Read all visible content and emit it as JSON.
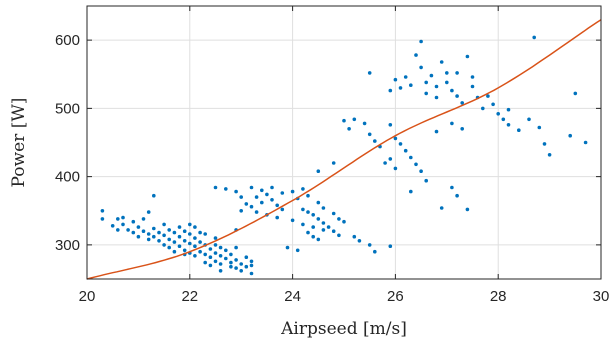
{
  "chart_data": {
    "type": "scatter",
    "xlabel": "Airpseed [m/s]",
    "ylabel": "Power [W]",
    "xlim": [
      20,
      30
    ],
    "ylim": [
      250,
      650
    ],
    "xticks": [
      20,
      22,
      24,
      26,
      28,
      30
    ],
    "yticks": [
      300,
      400,
      500,
      600
    ],
    "grid": true,
    "colors": {
      "points": "#0072BD",
      "fit": "#D95319"
    },
    "series": [
      {
        "kind": "points",
        "points": [
          [
            20.3,
            350
          ],
          [
            20.3,
            338
          ],
          [
            20.5,
            328
          ],
          [
            20.6,
            322
          ],
          [
            20.7,
            340
          ],
          [
            20.7,
            330
          ],
          [
            20.8,
            322
          ],
          [
            20.9,
            318
          ],
          [
            20.9,
            334
          ],
          [
            21.0,
            312
          ],
          [
            21.0,
            326
          ],
          [
            21.1,
            320
          ],
          [
            21.1,
            338
          ],
          [
            21.2,
            316
          ],
          [
            21.2,
            308
          ],
          [
            21.3,
            324
          ],
          [
            21.3,
            312
          ],
          [
            21.3,
            372
          ],
          [
            21.4,
            318
          ],
          [
            21.4,
            306
          ],
          [
            21.5,
            330
          ],
          [
            21.5,
            314
          ],
          [
            21.5,
            300
          ],
          [
            21.6,
            322
          ],
          [
            21.6,
            308
          ],
          [
            21.6,
            296
          ],
          [
            21.7,
            318
          ],
          [
            21.7,
            304
          ],
          [
            21.7,
            290
          ],
          [
            21.8,
            326
          ],
          [
            21.8,
            312
          ],
          [
            21.8,
            298
          ],
          [
            21.9,
            320
          ],
          [
            21.9,
            306
          ],
          [
            21.9,
            292
          ],
          [
            22.0,
            316
          ],
          [
            22.0,
            302
          ],
          [
            22.0,
            288
          ],
          [
            22.0,
            330
          ],
          [
            22.1,
            310
          ],
          [
            22.1,
            298
          ],
          [
            22.1,
            284
          ],
          [
            22.2,
            318
          ],
          [
            22.2,
            304
          ],
          [
            22.2,
            290
          ],
          [
            22.3,
            300
          ],
          [
            22.3,
            286
          ],
          [
            22.3,
            274
          ],
          [
            22.4,
            294
          ],
          [
            22.4,
            282
          ],
          [
            22.4,
            270
          ],
          [
            22.5,
            300
          ],
          [
            22.5,
            288
          ],
          [
            22.5,
            276
          ],
          [
            22.5,
            310
          ],
          [
            22.6,
            284
          ],
          [
            22.6,
            272
          ],
          [
            22.6,
            262
          ],
          [
            22.7,
            292
          ],
          [
            22.7,
            280
          ],
          [
            22.8,
            286
          ],
          [
            22.8,
            274
          ],
          [
            22.8,
            268
          ],
          [
            22.9,
            278
          ],
          [
            22.9,
            266
          ],
          [
            23.0,
            272
          ],
          [
            23.0,
            262
          ],
          [
            23.1,
            282
          ],
          [
            23.1,
            268
          ],
          [
            23.2,
            276
          ],
          [
            22.9,
            322
          ],
          [
            22.9,
            296
          ],
          [
            23.2,
            270
          ],
          [
            23.2,
            258
          ],
          [
            22.1,
            326
          ],
          [
            21.2,
            348
          ],
          [
            20.6,
            338
          ],
          [
            21.9,
            286
          ],
          [
            22.6,
            296
          ],
          [
            22.3,
            316
          ],
          [
            22.5,
            384
          ],
          [
            22.7,
            382
          ],
          [
            22.9,
            378
          ],
          [
            23.0,
            370
          ],
          [
            23.1,
            360
          ],
          [
            23.2,
            356
          ],
          [
            23.3,
            370
          ],
          [
            23.4,
            362
          ],
          [
            23.5,
            374
          ],
          [
            23.6,
            366
          ],
          [
            23.7,
            358
          ],
          [
            23.8,
            352
          ],
          [
            23.2,
            384
          ],
          [
            23.4,
            380
          ],
          [
            23.6,
            384
          ],
          [
            23.8,
            376
          ],
          [
            23.0,
            350
          ],
          [
            23.3,
            348
          ],
          [
            23.5,
            344
          ],
          [
            23.7,
            340
          ],
          [
            24.0,
            378
          ],
          [
            24.1,
            368
          ],
          [
            24.2,
            352
          ],
          [
            24.3,
            348
          ],
          [
            24.4,
            344
          ],
          [
            24.5,
            338
          ],
          [
            24.6,
            332
          ],
          [
            24.7,
            326
          ],
          [
            24.8,
            320
          ],
          [
            24.9,
            314
          ],
          [
            24.3,
            372
          ],
          [
            24.5,
            362
          ],
          [
            24.6,
            354
          ],
          [
            24.8,
            346
          ],
          [
            24.9,
            338
          ],
          [
            25.0,
            334
          ],
          [
            24.0,
            336
          ],
          [
            24.2,
            330
          ],
          [
            24.4,
            326
          ],
          [
            24.6,
            322
          ],
          [
            23.9,
            296
          ],
          [
            24.1,
            292
          ],
          [
            24.2,
            382
          ],
          [
            24.3,
            318
          ],
          [
            24.4,
            312
          ],
          [
            24.5,
            308
          ],
          [
            25.2,
            312
          ],
          [
            25.3,
            306
          ],
          [
            25.5,
            300
          ],
          [
            25.6,
            290
          ],
          [
            24.5,
            408
          ],
          [
            24.8,
            420
          ],
          [
            25.0,
            482
          ],
          [
            25.1,
            470
          ],
          [
            25.2,
            484
          ],
          [
            25.4,
            478
          ],
          [
            25.5,
            462
          ],
          [
            25.6,
            452
          ],
          [
            25.7,
            444
          ],
          [
            25.5,
            552
          ],
          [
            25.8,
            420
          ],
          [
            25.9,
            426
          ],
          [
            25.9,
            476
          ],
          [
            25.9,
            298
          ],
          [
            26.0,
            456
          ],
          [
            26.0,
            412
          ],
          [
            26.1,
            448
          ],
          [
            26.2,
            438
          ],
          [
            26.3,
            428
          ],
          [
            26.3,
            378
          ],
          [
            26.4,
            418
          ],
          [
            26.5,
            408
          ],
          [
            26.6,
            394
          ],
          [
            26.8,
            466
          ],
          [
            26.9,
            354
          ],
          [
            27.1,
            384
          ],
          [
            27.2,
            372
          ],
          [
            27.4,
            352
          ],
          [
            27.1,
            478
          ],
          [
            27.3,
            470
          ],
          [
            25.9,
            526
          ],
          [
            26.0,
            542
          ],
          [
            26.1,
            530
          ],
          [
            26.2,
            546
          ],
          [
            26.3,
            534
          ],
          [
            26.4,
            578
          ],
          [
            26.5,
            560
          ],
          [
            26.5,
            598
          ],
          [
            26.6,
            538
          ],
          [
            26.6,
            522
          ],
          [
            26.7,
            548
          ],
          [
            26.8,
            532
          ],
          [
            26.8,
            516
          ],
          [
            26.9,
            568
          ],
          [
            27.0,
            552
          ],
          [
            27.0,
            538
          ],
          [
            27.1,
            526
          ],
          [
            27.2,
            518
          ],
          [
            27.3,
            508
          ],
          [
            27.2,
            552
          ],
          [
            27.4,
            576
          ],
          [
            27.5,
            546
          ],
          [
            27.5,
            532
          ],
          [
            27.6,
            516
          ],
          [
            27.7,
            500
          ],
          [
            27.8,
            518
          ],
          [
            27.9,
            506
          ],
          [
            28.0,
            492
          ],
          [
            28.1,
            484
          ],
          [
            28.2,
            498
          ],
          [
            28.2,
            476
          ],
          [
            28.4,
            468
          ],
          [
            28.6,
            484
          ],
          [
            28.7,
            604
          ],
          [
            28.8,
            472
          ],
          [
            28.9,
            448
          ],
          [
            29.0,
            432
          ],
          [
            29.4,
            460
          ],
          [
            29.5,
            522
          ],
          [
            29.7,
            450
          ]
        ]
      },
      {
        "kind": "fit",
        "points": [
          [
            20,
            250
          ],
          [
            22,
            290
          ],
          [
            24,
            365
          ],
          [
            26,
            460
          ],
          [
            28,
            530
          ],
          [
            30,
            630
          ]
        ]
      }
    ]
  }
}
